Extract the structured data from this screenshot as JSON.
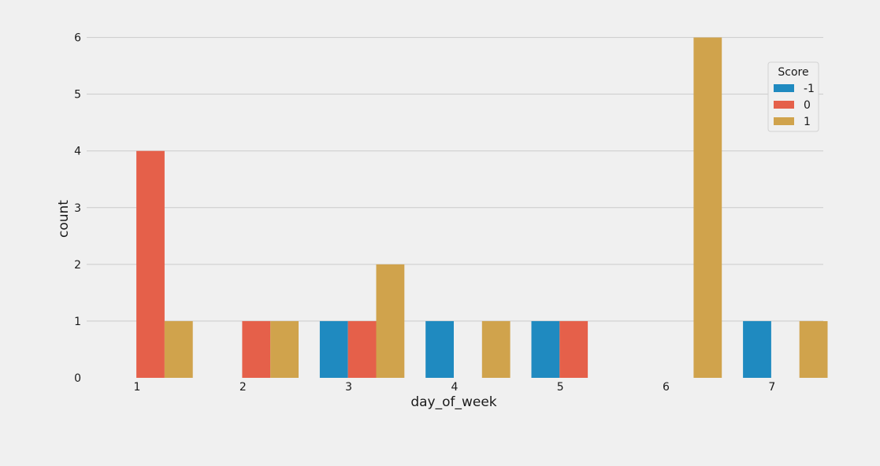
{
  "chart_data": {
    "type": "bar",
    "title": "",
    "xlabel": "day_of_week",
    "ylabel": "count",
    "categories": [
      "1",
      "2",
      "3",
      "4",
      "5",
      "6",
      "7"
    ],
    "ylim": [
      0,
      6.3
    ],
    "yticks": [
      0,
      1,
      2,
      3,
      4,
      5,
      6
    ],
    "grid": true,
    "legend": {
      "title": "Score",
      "placement": "top-right"
    },
    "series": [
      {
        "name": "-1",
        "color": "#1f8ac0",
        "values": [
          0,
          0,
          1,
          1,
          1,
          0,
          1
        ]
      },
      {
        "name": "0",
        "color": "#e5604a",
        "values": [
          4,
          1,
          1,
          0,
          1,
          0,
          0
        ]
      },
      {
        "name": "1",
        "color": "#d0a34c",
        "values": [
          1,
          1,
          2,
          1,
          0,
          6,
          1
        ]
      }
    ]
  }
}
